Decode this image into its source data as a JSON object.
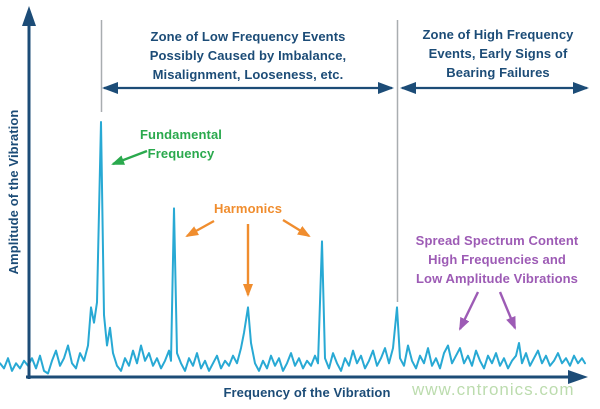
{
  "colors": {
    "navy": "#1c4c77",
    "trace": "#28a9d4",
    "green": "#2aa94d",
    "orange": "#f08d2e",
    "purple": "#9d5bb5",
    "gray": "#a9adb0",
    "watermark": "#bcdcae"
  },
  "labels": {
    "zone_low": "Zone of Low Frequency Events\nPossibly Caused by Imbalance,\nMisalignment, Looseness, etc.",
    "zone_high": "Zone of High Frequency\nEvents, Early Signs of\nBearing Failures",
    "fundamental": "Fundamental\nFrequency",
    "harmonics": "Harmonics",
    "spread": "Spread Spectrum Content\nHigh Frequencies and\nLow Amplitude Vibrations",
    "x_axis": "Frequency of the Vibration",
    "y_axis": "Amplitude of the Vibration",
    "watermark": "www.cntronics.com"
  },
  "chart_data": {
    "type": "line",
    "title": "",
    "xlabel": "Frequency of the Vibration",
    "ylabel": "Amplitude of the Vibration",
    "x_unit": "relative frequency (no tick labels shown)",
    "y_unit": "relative amplitude (no tick labels shown)",
    "grid": false,
    "axis_ticks": "none",
    "zones": [
      {
        "label": "Zone of Low Frequency Events, Possibly Caused by Imbalance, Misalignment, Looseness, etc.",
        "x_range": [
          101,
          397
        ]
      },
      {
        "label": "Zone of High Frequency Events, Early Signs of Bearing Failures",
        "x_range": [
          397,
          590
        ]
      }
    ],
    "peaks": {
      "fundamental": {
        "x": 101,
        "amplitude": 1.0
      },
      "harmonics": [
        {
          "x": 174,
          "amplitude": 0.66
        },
        {
          "x": 248,
          "amplitude": 0.27
        },
        {
          "x": 322,
          "amplitude": 0.53
        }
      ],
      "zone_boundary_peak": {
        "x": 397,
        "amplitude": 0.27
      },
      "spread_spectrum_spike": {
        "x": 519,
        "amplitude": 0.13
      }
    },
    "series": [
      {
        "name": "vibration-spectrum",
        "points": [
          [
            0,
            0.05
          ],
          [
            4,
            0.03
          ],
          [
            8,
            0.07
          ],
          [
            12,
            0.02
          ],
          [
            16,
            0.05
          ],
          [
            20,
            0.03
          ],
          [
            24,
            0.06
          ],
          [
            28,
            0.04
          ],
          [
            32,
            0.07
          ],
          [
            36,
            0.03
          ],
          [
            40,
            0.08
          ],
          [
            44,
            0.02
          ],
          [
            48,
            0.01
          ],
          [
            52,
            0.06
          ],
          [
            56,
            0.1
          ],
          [
            60,
            0.04
          ],
          [
            64,
            0.07
          ],
          [
            68,
            0.12
          ],
          [
            72,
            0.05
          ],
          [
            76,
            0.03
          ],
          [
            80,
            0.09
          ],
          [
            84,
            0.06
          ],
          [
            88,
            0.12
          ],
          [
            91,
            0.27
          ],
          [
            94,
            0.21
          ],
          [
            97,
            0.29
          ],
          [
            101,
            1.0
          ],
          [
            104,
            0.24
          ],
          [
            107,
            0.12
          ],
          [
            110,
            0.19
          ],
          [
            113,
            0.09
          ],
          [
            117,
            0.04
          ],
          [
            121,
            0.02
          ],
          [
            125,
            0.07
          ],
          [
            129,
            0.04
          ],
          [
            133,
            0.1
          ],
          [
            137,
            0.05
          ],
          [
            141,
            0.12
          ],
          [
            145,
            0.06
          ],
          [
            149,
            0.09
          ],
          [
            153,
            0.04
          ],
          [
            157,
            0.07
          ],
          [
            161,
            0.03
          ],
          [
            165,
            0.06
          ],
          [
            169,
            0.1
          ],
          [
            171,
            0.06
          ],
          [
            174,
            0.66
          ],
          [
            177,
            0.09
          ],
          [
            181,
            0.05
          ],
          [
            185,
            0.02
          ],
          [
            189,
            0.07
          ],
          [
            193,
            0.04
          ],
          [
            197,
            0.09
          ],
          [
            201,
            0.03
          ],
          [
            205,
            0.06
          ],
          [
            209,
            0.02
          ],
          [
            213,
            0.05
          ],
          [
            217,
            0.08
          ],
          [
            221,
            0.03
          ],
          [
            225,
            0.06
          ],
          [
            229,
            0.04
          ],
          [
            233,
            0.08
          ],
          [
            237,
            0.05
          ],
          [
            241,
            0.11
          ],
          [
            244,
            0.17
          ],
          [
            248,
            0.27
          ],
          [
            251,
            0.13
          ],
          [
            255,
            0.05
          ],
          [
            259,
            0.02
          ],
          [
            263,
            0.06
          ],
          [
            267,
            0.03
          ],
          [
            271,
            0.08
          ],
          [
            275,
            0.04
          ],
          [
            279,
            0.07
          ],
          [
            283,
            0.02
          ],
          [
            287,
            0.05
          ],
          [
            291,
            0.09
          ],
          [
            295,
            0.04
          ],
          [
            299,
            0.07
          ],
          [
            303,
            0.03
          ],
          [
            307,
            0.06
          ],
          [
            311,
            0.04
          ],
          [
            315,
            0.08
          ],
          [
            318,
            0.05
          ],
          [
            322,
            0.53
          ],
          [
            325,
            0.07
          ],
          [
            329,
            0.03
          ],
          [
            333,
            0.09
          ],
          [
            337,
            0.05
          ],
          [
            341,
            0.02
          ],
          [
            345,
            0.07
          ],
          [
            349,
            0.04
          ],
          [
            353,
            0.1
          ],
          [
            357,
            0.05
          ],
          [
            361,
            0.08
          ],
          [
            365,
            0.03
          ],
          [
            369,
            0.06
          ],
          [
            373,
            0.1
          ],
          [
            377,
            0.04
          ],
          [
            381,
            0.07
          ],
          [
            385,
            0.11
          ],
          [
            389,
            0.05
          ],
          [
            393,
            0.11
          ],
          [
            397,
            0.27
          ],
          [
            400,
            0.07
          ],
          [
            404,
            0.04
          ],
          [
            408,
            0.12
          ],
          [
            412,
            0.06
          ],
          [
            416,
            0.03
          ],
          [
            420,
            0.08
          ],
          [
            424,
            0.05
          ],
          [
            428,
            0.11
          ],
          [
            432,
            0.04
          ],
          [
            436,
            0.07
          ],
          [
            440,
            0.03
          ],
          [
            444,
            0.09
          ],
          [
            448,
            0.12
          ],
          [
            452,
            0.05
          ],
          [
            456,
            0.08
          ],
          [
            460,
            0.11
          ],
          [
            464,
            0.05
          ],
          [
            468,
            0.08
          ],
          [
            472,
            0.04
          ],
          [
            476,
            0.1
          ],
          [
            480,
            0.06
          ],
          [
            484,
            0.03
          ],
          [
            488,
            0.08
          ],
          [
            492,
            0.05
          ],
          [
            496,
            0.09
          ],
          [
            500,
            0.04
          ],
          [
            504,
            0.07
          ],
          [
            508,
            0.03
          ],
          [
            512,
            0.06
          ],
          [
            516,
            0.08
          ],
          [
            519,
            0.13
          ],
          [
            522,
            0.05
          ],
          [
            526,
            0.09
          ],
          [
            530,
            0.04
          ],
          [
            534,
            0.07
          ],
          [
            538,
            0.1
          ],
          [
            542,
            0.05
          ],
          [
            546,
            0.08
          ],
          [
            550,
            0.04
          ],
          [
            554,
            0.06
          ],
          [
            558,
            0.09
          ],
          [
            562,
            0.05
          ],
          [
            566,
            0.07
          ],
          [
            570,
            0.04
          ],
          [
            574,
            0.08
          ],
          [
            578,
            0.05
          ],
          [
            582,
            0.07
          ],
          [
            585,
            0.05
          ]
        ]
      }
    ]
  }
}
